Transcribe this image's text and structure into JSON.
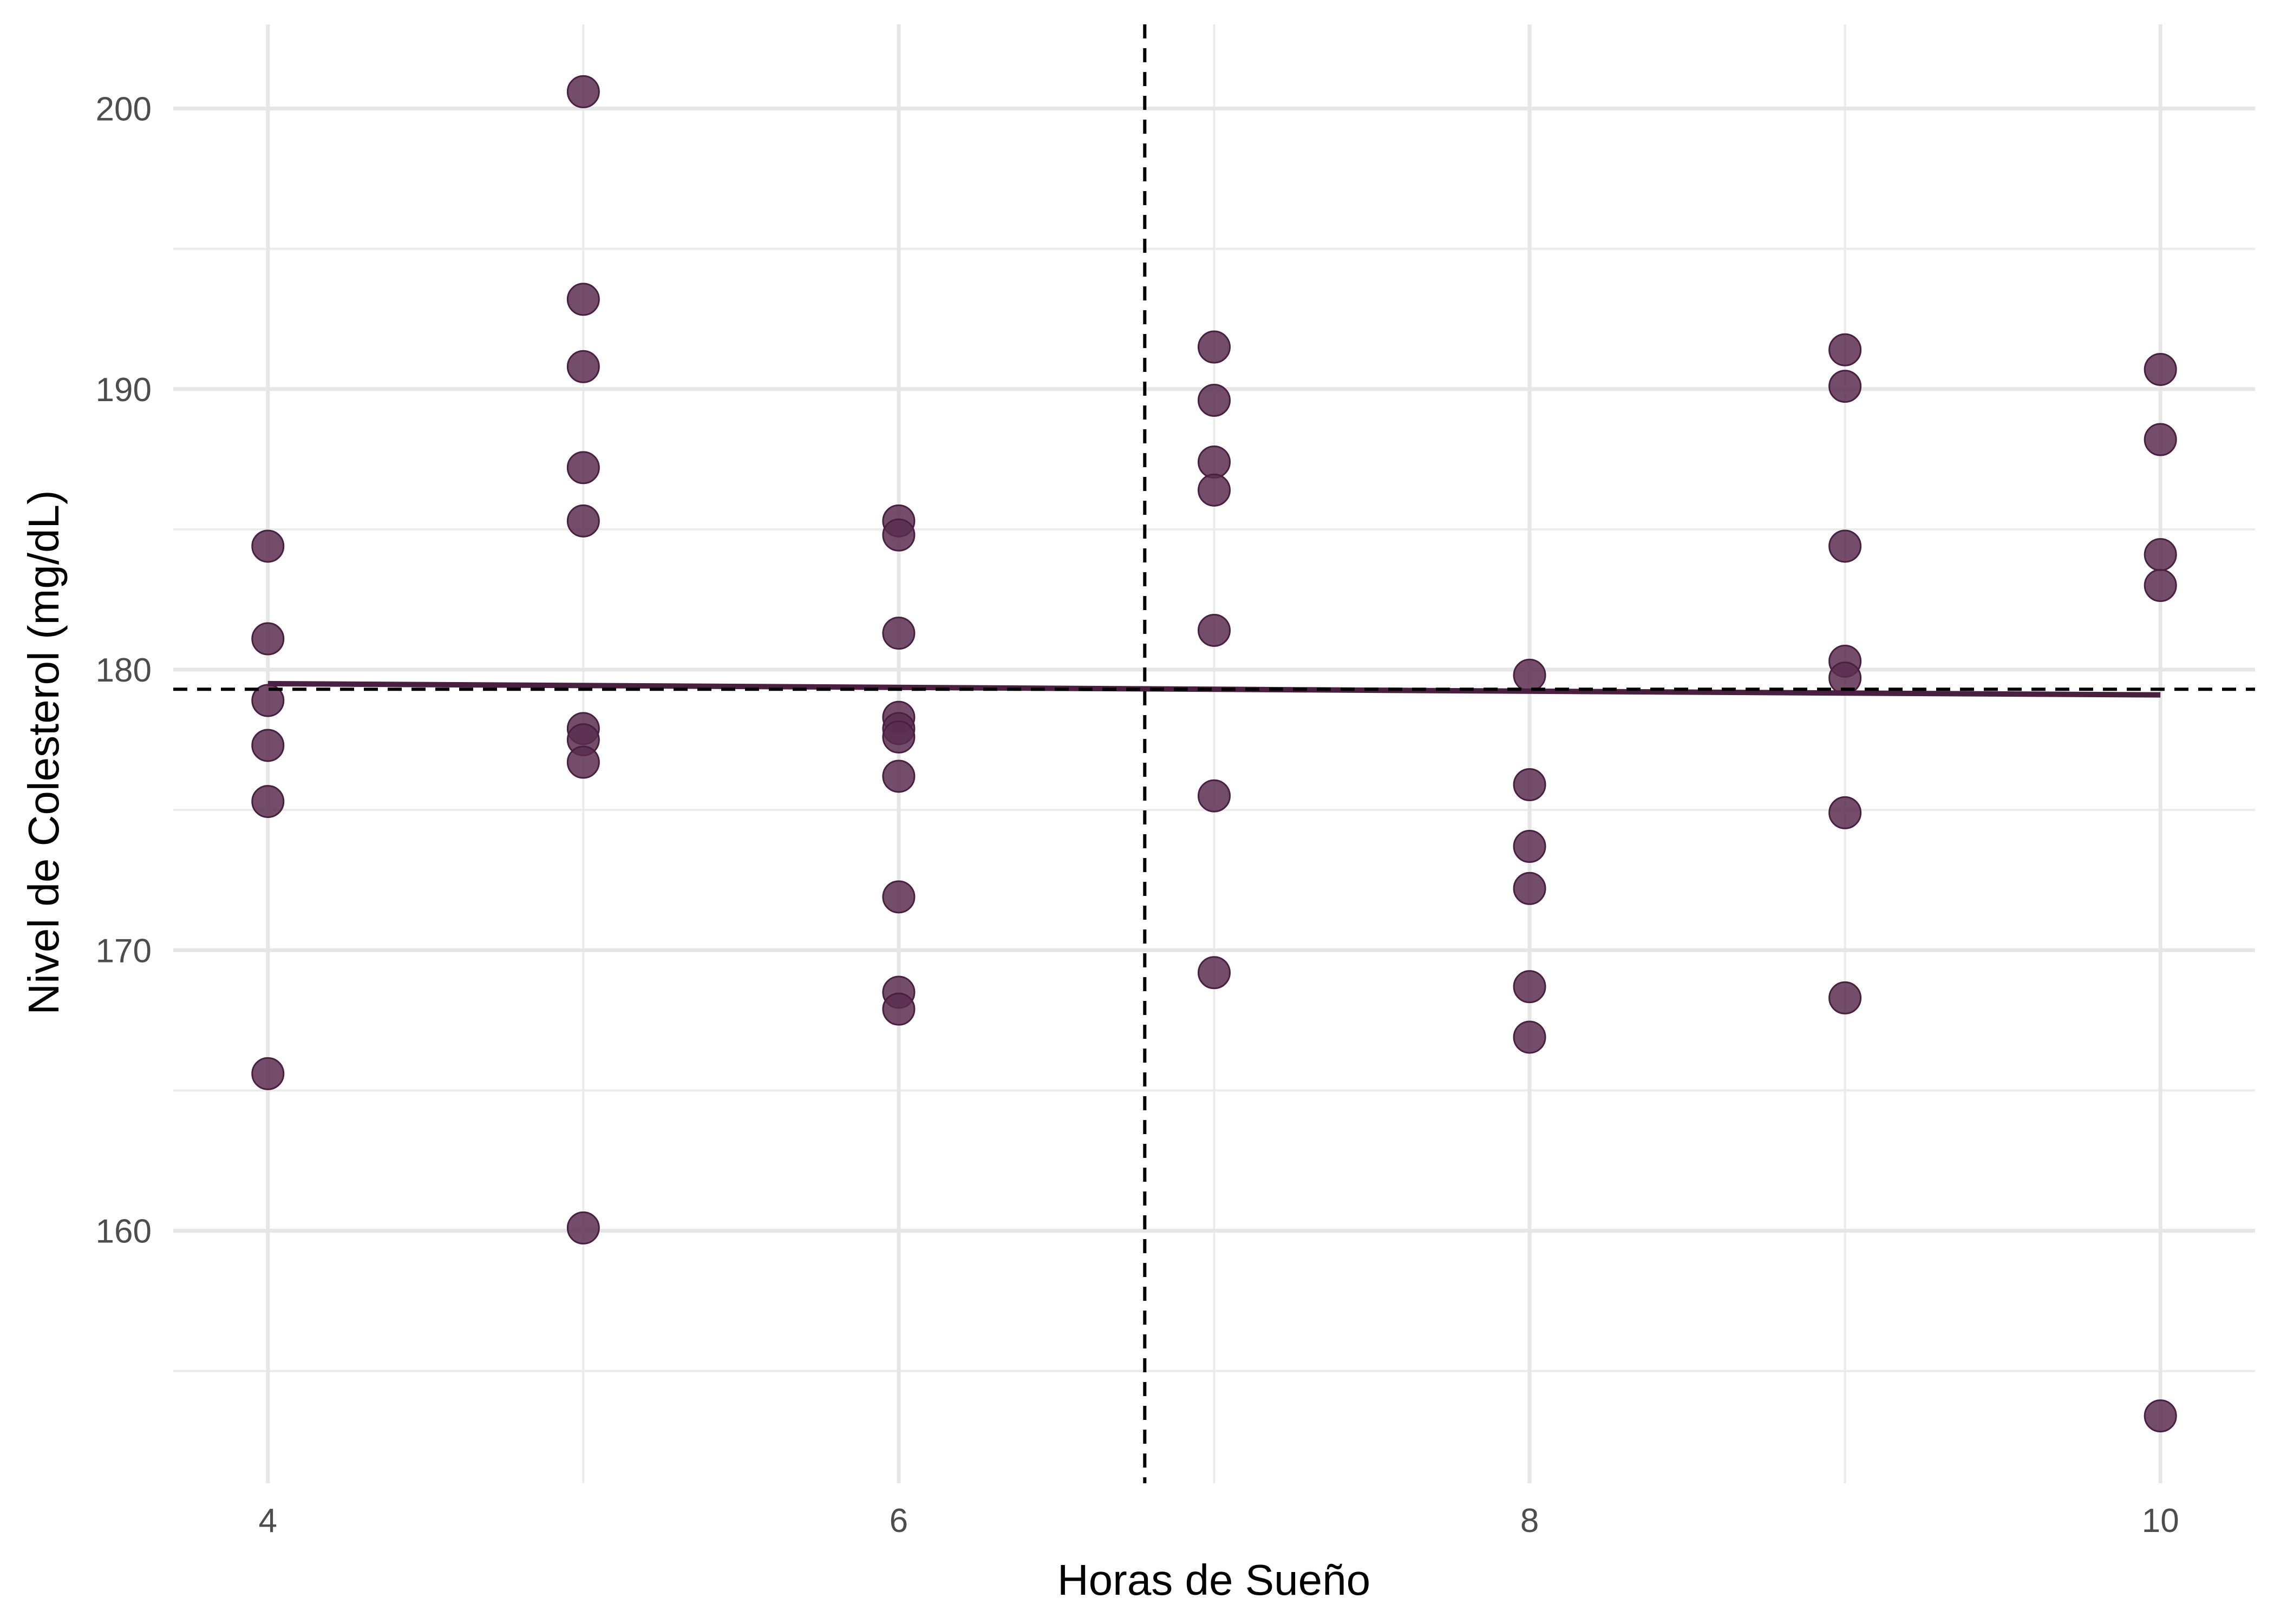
{
  "chart_data": {
    "type": "scatter",
    "title": "",
    "xlabel": "Horas de Sueño",
    "ylabel": "Nivel de Colesterol (mg/dL)",
    "xlim": [
      3.7,
      10.3
    ],
    "ylim": [
      151,
      203
    ],
    "x_ticks": [
      4,
      6,
      8,
      10
    ],
    "y_ticks": [
      160,
      170,
      180,
      190,
      200
    ],
    "grid": true,
    "point_color": "#5a2e4f",
    "points": [
      {
        "x": 4,
        "y": 184.4
      },
      {
        "x": 4,
        "y": 181.1
      },
      {
        "x": 4,
        "y": 178.9
      },
      {
        "x": 4,
        "y": 177.3
      },
      {
        "x": 4,
        "y": 175.3
      },
      {
        "x": 4,
        "y": 165.6
      },
      {
        "x": 5,
        "y": 200.6
      },
      {
        "x": 5,
        "y": 193.2
      },
      {
        "x": 5,
        "y": 190.8
      },
      {
        "x": 5,
        "y": 187.2
      },
      {
        "x": 5,
        "y": 185.3
      },
      {
        "x": 5,
        "y": 177.9
      },
      {
        "x": 5,
        "y": 177.5
      },
      {
        "x": 5,
        "y": 176.7
      },
      {
        "x": 5,
        "y": 160.1
      },
      {
        "x": 6,
        "y": 185.3
      },
      {
        "x": 6,
        "y": 184.8
      },
      {
        "x": 6,
        "y": 181.3
      },
      {
        "x": 6,
        "y": 178.3
      },
      {
        "x": 6,
        "y": 177.9
      },
      {
        "x": 6,
        "y": 177.6
      },
      {
        "x": 6,
        "y": 176.2
      },
      {
        "x": 6,
        "y": 171.9
      },
      {
        "x": 6,
        "y": 168.5
      },
      {
        "x": 6,
        "y": 167.9
      },
      {
        "x": 7,
        "y": 191.5
      },
      {
        "x": 7,
        "y": 189.6
      },
      {
        "x": 7,
        "y": 187.4
      },
      {
        "x": 7,
        "y": 186.4
      },
      {
        "x": 7,
        "y": 181.4
      },
      {
        "x": 7,
        "y": 175.5
      },
      {
        "x": 7,
        "y": 169.2
      },
      {
        "x": 8,
        "y": 179.8
      },
      {
        "x": 8,
        "y": 175.9
      },
      {
        "x": 8,
        "y": 173.7
      },
      {
        "x": 8,
        "y": 172.2
      },
      {
        "x": 8,
        "y": 168.7
      },
      {
        "x": 8,
        "y": 166.9
      },
      {
        "x": 9,
        "y": 191.4
      },
      {
        "x": 9,
        "y": 190.1
      },
      {
        "x": 9,
        "y": 184.4
      },
      {
        "x": 9,
        "y": 180.3
      },
      {
        "x": 9,
        "y": 179.7
      },
      {
        "x": 9,
        "y": 174.9
      },
      {
        "x": 9,
        "y": 168.3
      },
      {
        "x": 10,
        "y": 190.7
      },
      {
        "x": 10,
        "y": 188.2
      },
      {
        "x": 10,
        "y": 184.1
      },
      {
        "x": 10,
        "y": 183.0
      },
      {
        "x": 10,
        "y": 153.4
      }
    ],
    "trend_line": {
      "x": [
        4,
        10
      ],
      "y": [
        179.5,
        179.1
      ],
      "color": "#4b1f3f"
    },
    "reference_lines": {
      "mean_x": 6.78,
      "mean_y": 179.3
    }
  }
}
